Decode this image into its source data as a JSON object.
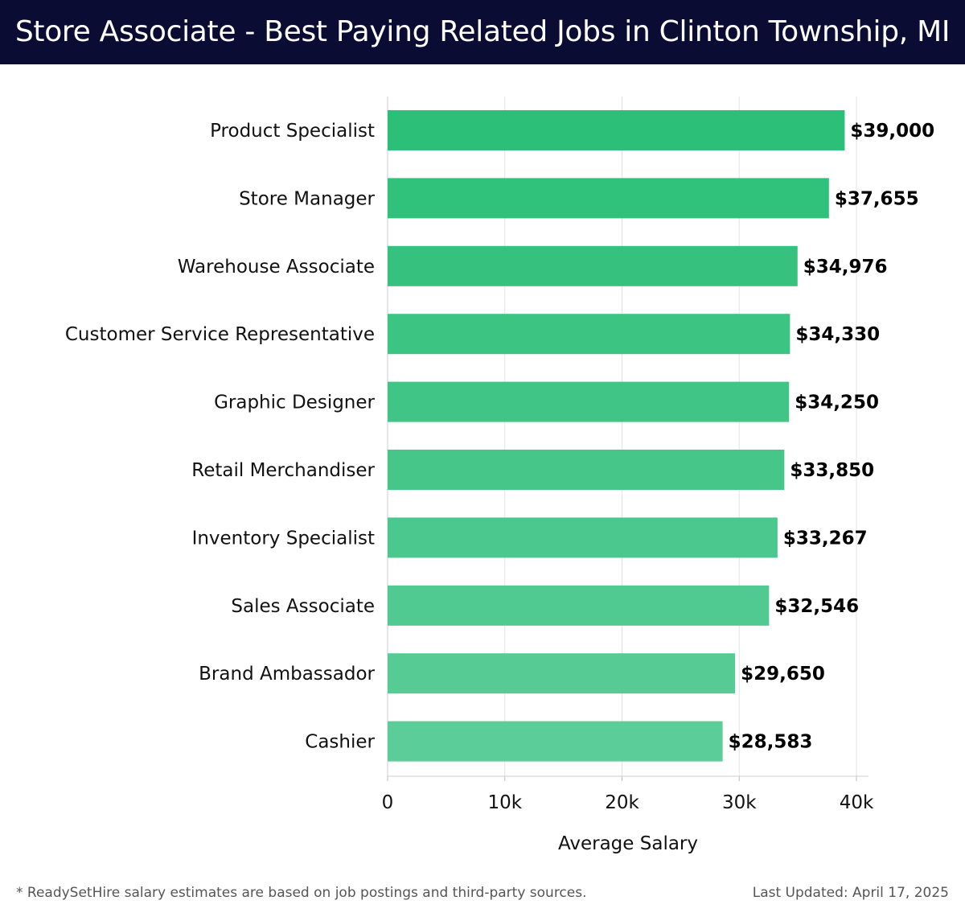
{
  "header": {
    "title": "Store Associate - Best Paying Related Jobs in Clinton Township, MI"
  },
  "chart_data": {
    "type": "bar",
    "orientation": "horizontal",
    "categories": [
      "Product Specialist",
      "Store Manager",
      "Warehouse Associate",
      "Customer Service Representative",
      "Graphic Designer",
      "Retail Merchandiser",
      "Inventory Specialist",
      "Sales Associate",
      "Brand Ambassador",
      "Cashier"
    ],
    "values": [
      39000,
      37655,
      34976,
      34330,
      34250,
      33850,
      33267,
      32546,
      29650,
      28583
    ],
    "value_labels": [
      "$39,000",
      "$37,655",
      "$34,976",
      "$34,330",
      "$34,250",
      "$33,850",
      "$33,267",
      "$32,546",
      "$29,650",
      "$28,583"
    ],
    "xlabel": "Average Salary",
    "xlim": [
      0,
      41000
    ],
    "xticks": [
      0,
      10000,
      20000,
      30000,
      40000
    ],
    "xtick_labels": [
      "0",
      "10k",
      "20k",
      "30k",
      "40k"
    ],
    "grid": true,
    "colors": {
      "bar_top": "#2bbf77",
      "bar_bottom": "#5bcd98"
    }
  },
  "footer": {
    "note": "* ReadySetHire salary estimates are based on job postings and third-party sources.",
    "updated": "Last Updated: April 17, 2025"
  }
}
